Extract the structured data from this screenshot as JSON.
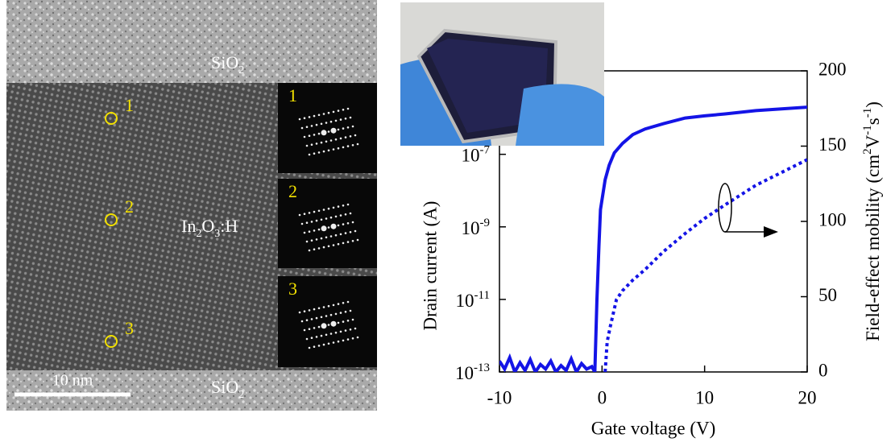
{
  "image": {
    "top_label": [
      "SiO",
      "2"
    ],
    "middle_label": [
      "In",
      "2",
      "O",
      "3",
      ":H"
    ],
    "bottom_label": [
      "SiO",
      "2"
    ],
    "scale_bar": "10 nm",
    "points": [
      "1",
      "2",
      "3"
    ],
    "insets": [
      "1",
      "2",
      "3"
    ]
  },
  "chart_data": {
    "type": "line",
    "xlabel": "Gate voltage (V)",
    "ylabel": "Drain current (A)",
    "y2label": [
      "Field-effect mobility (cm",
      "2",
      "V",
      "-1",
      "s",
      "-1",
      ")"
    ],
    "xlim": [
      -10,
      20
    ],
    "xticks": [
      -10,
      0,
      10,
      20
    ],
    "yscale": "log",
    "ylim": [
      1e-13,
      2e-05
    ],
    "yticks": [
      {
        "value": 1e-13,
        "label": [
          "10",
          "-13"
        ]
      },
      {
        "value": 1e-11,
        "label": [
          "10",
          "-11"
        ]
      },
      {
        "value": 1e-09,
        "label": [
          "10",
          "-9"
        ]
      },
      {
        "value": 1e-07,
        "label": [
          "10",
          "-7"
        ]
      }
    ],
    "y2lim": [
      0,
      200
    ],
    "y2ticks": [
      0,
      50,
      100,
      150,
      200
    ],
    "series": [
      {
        "color": "#1414e6",
        "style": "solid",
        "x": [
          -10,
          -9.5,
          -9,
          -8.5,
          -8,
          -7.5,
          -7,
          -6.5,
          -6,
          -5.5,
          -5,
          -4.5,
          -4,
          -3.5,
          -3,
          -2.5,
          -2,
          -1.5,
          -1,
          -0.7,
          -0.5,
          -0.3,
          -0.15,
          0.3,
          0.7,
          1.2,
          2,
          3,
          4.2,
          6,
          8.1,
          10,
          12,
          15,
          20
        ],
        "values": [
          2e-13,
          1.2e-13,
          2.5e-13,
          1e-13,
          1.8e-13,
          1.1e-13,
          2.2e-13,
          1e-13,
          1.6e-13,
          1.2e-13,
          2e-13,
          1e-13,
          1.5e-13,
          1.1e-13,
          2.3e-13,
          1e-13,
          1.7e-13,
          1.2e-13,
          1.4e-13,
          1e-13,
          1e-11,
          3e-10,
          3e-09,
          2e-08,
          5e-08,
          1.1e-07,
          2e-07,
          3.5e-07,
          5e-07,
          7e-07,
          1e-06,
          1.15e-06,
          1.3e-06,
          1.6e-06,
          2e-06
        ]
      },
      {
        "color": "#1414e6",
        "style": "dotted",
        "axis": "y2",
        "x": [
          0.3,
          0.5,
          0.8,
          1.4,
          2,
          3,
          4.2,
          6,
          8.1,
          10,
          12,
          15,
          20
        ],
        "values": [
          0,
          20,
          30,
          48,
          54,
          61,
          68,
          80,
          92,
          102,
          111,
          124,
          141
        ]
      }
    ]
  }
}
